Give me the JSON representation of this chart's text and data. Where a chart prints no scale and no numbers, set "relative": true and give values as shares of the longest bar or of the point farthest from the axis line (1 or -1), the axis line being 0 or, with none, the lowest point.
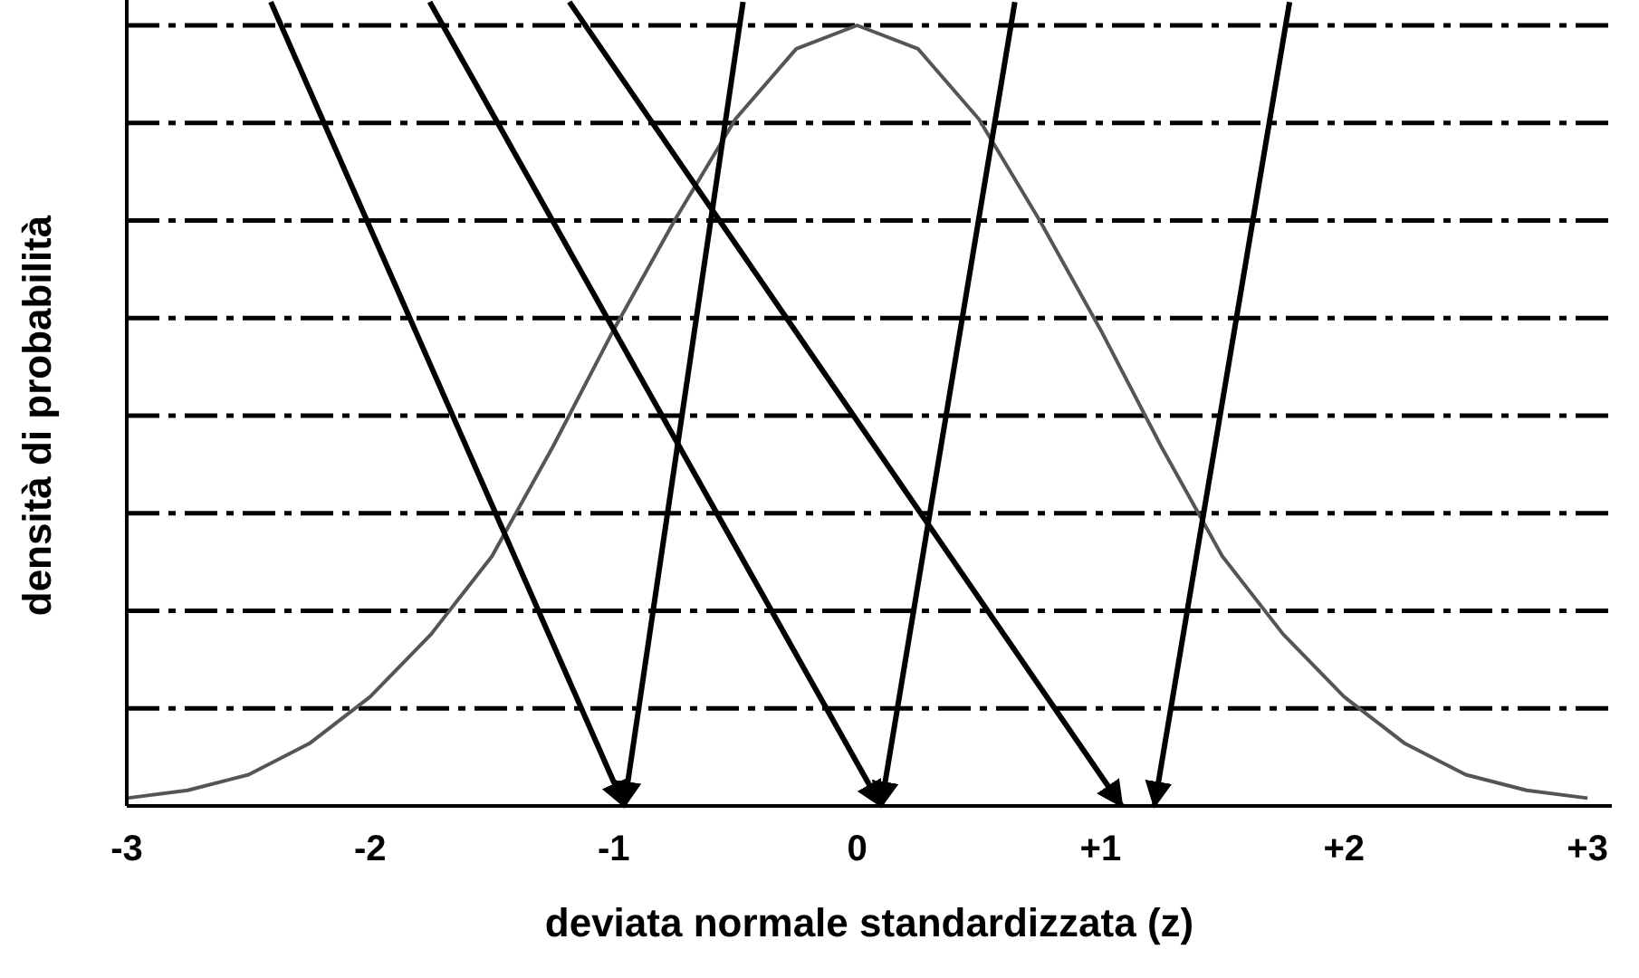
{
  "chart_data": {
    "type": "line",
    "relative": true,
    "xlabel": "deviata normale standardizzata (z)",
    "ylabel": "densità di probabilità",
    "xlim": [
      -3,
      3.1
    ],
    "xticks": [
      -3,
      -2,
      -1,
      0,
      {
        "value": 1,
        "label": "+1"
      },
      {
        "value": 2,
        "label": "+2"
      },
      {
        "value": 3,
        "label": "+3"
      }
    ],
    "x": [
      -3,
      -2.75,
      -2.5,
      -2.25,
      -2,
      -1.75,
      -1.5,
      -1.25,
      -1,
      -0.75,
      -0.5,
      -0.25,
      0,
      0.25,
      0.5,
      0.75,
      1,
      1.25,
      1.5,
      1.75,
      2,
      2.25,
      2.5,
      2.75,
      3
    ],
    "series": [
      {
        "color": "#555555",
        "values": [
          0.01,
          0.02,
          0.04,
          0.08,
          0.14,
          0.22,
          0.32,
          0.46,
          0.61,
          0.75,
          0.88,
          0.97,
          1,
          0.97,
          0.88,
          0.75,
          0.61,
          0.46,
          0.32,
          0.22,
          0.14,
          0.08,
          0.04,
          0.02,
          0.01
        ]
      }
    ],
    "ref_lines": [
      {
        "axis": "y",
        "value": 0.125,
        "color": "#000000",
        "line_style": "dashed"
      },
      {
        "axis": "y",
        "value": 0.25,
        "color": "#000000",
        "line_style": "dashed"
      },
      {
        "axis": "y",
        "value": 0.375,
        "color": "#000000",
        "line_style": "dashed"
      },
      {
        "axis": "y",
        "value": 0.5,
        "color": "#000000",
        "line_style": "dashed"
      },
      {
        "axis": "y",
        "value": 0.625,
        "color": "#000000",
        "line_style": "dashed"
      },
      {
        "axis": "y",
        "value": 0.75,
        "color": "#000000",
        "line_style": "dashed"
      },
      {
        "axis": "y",
        "value": 0.875,
        "color": "#000000",
        "line_style": "dashed"
      },
      {
        "axis": "y",
        "value": 1,
        "color": "#000000",
        "line_style": "dashed"
      }
    ],
    "grid": false,
    "marker": "none",
    "line_style": "solid"
  }
}
